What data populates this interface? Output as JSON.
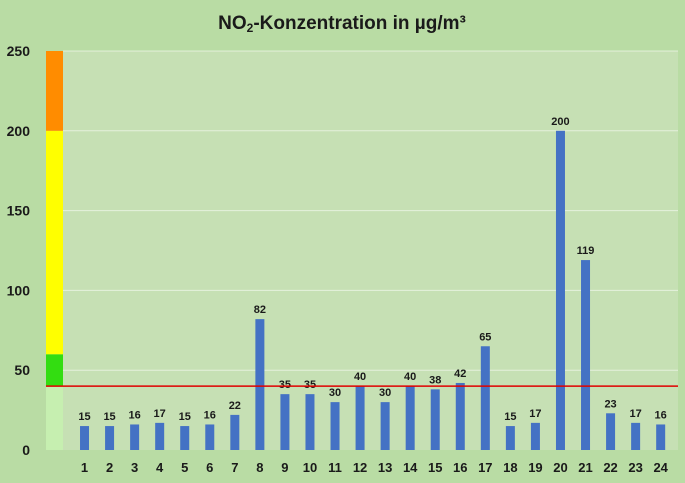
{
  "chart_data": {
    "type": "bar",
    "title": "NO₂-Konzentration in µg/m³",
    "title_parts": {
      "pre": "NO",
      "sub": "2",
      "post": "-Konzentration in µg/m³"
    },
    "categories": [
      "1",
      "2",
      "3",
      "4",
      "5",
      "6",
      "7",
      "8",
      "9",
      "10",
      "11",
      "12",
      "13",
      "14",
      "15",
      "16",
      "17",
      "18",
      "19",
      "20",
      "21",
      "22",
      "23",
      "24"
    ],
    "values": [
      15,
      15,
      16,
      17,
      15,
      16,
      22,
      82,
      35,
      35,
      30,
      40,
      30,
      40,
      38,
      42,
      65,
      15,
      17,
      200,
      119,
      23,
      17,
      16
    ],
    "ylim": [
      0,
      250
    ],
    "yticks": [
      0,
      50,
      100,
      150,
      200,
      250
    ],
    "grid": true,
    "bar_color": "#4472c4",
    "plot_background": "#c6e0b4",
    "background": "#b9dca4",
    "gridline_color": "#ffffff",
    "threshold": {
      "value": 40,
      "color": "#e00000"
    },
    "scale_bands": [
      {
        "from": 0,
        "to": 40,
        "color": "#c6efb0"
      },
      {
        "from": 40,
        "to": 60,
        "color": "#33dd11"
      },
      {
        "from": 60,
        "to": 200,
        "color": "#ffff00"
      },
      {
        "from": 200,
        "to": 250,
        "color": "#ff8c00"
      }
    ]
  }
}
